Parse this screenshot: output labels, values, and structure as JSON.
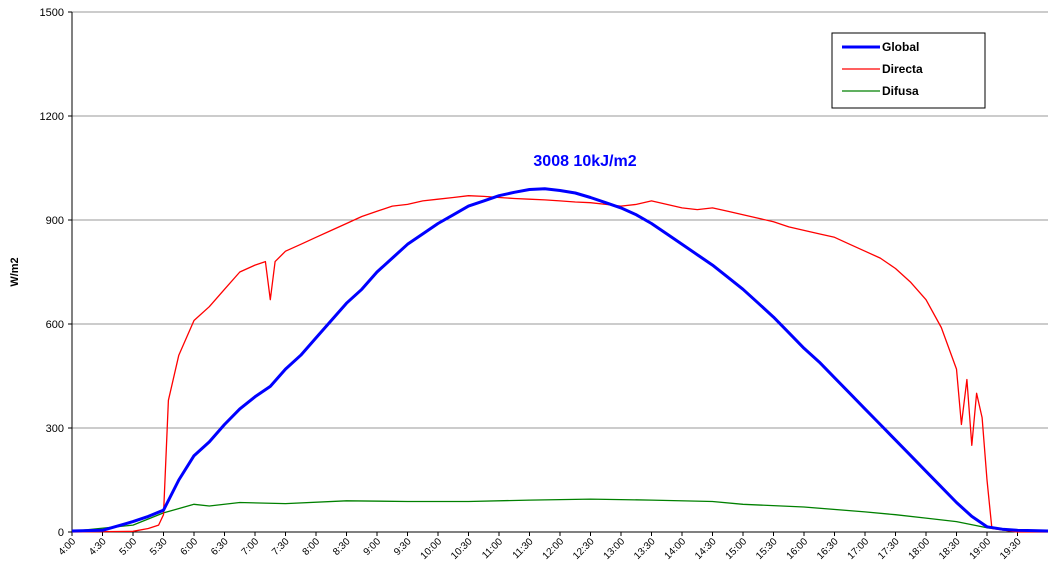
{
  "chart_data": {
    "type": "line",
    "annotation": "3008  10kJ/m2",
    "ylabel": "W/m2",
    "xlim": [
      4,
      20
    ],
    "ylim": [
      0,
      1500
    ],
    "yticks": [
      0,
      300,
      600,
      900,
      1200,
      1500
    ],
    "xticks": [
      {
        "value": 4,
        "label": "4:00"
      },
      {
        "value": 4.5,
        "label": "4:30"
      },
      {
        "value": 5,
        "label": "5:00"
      },
      {
        "value": 5.5,
        "label": "5:30"
      },
      {
        "value": 6,
        "label": "6:00"
      },
      {
        "value": 6.5,
        "label": "6:30"
      },
      {
        "value": 7,
        "label": "7:00"
      },
      {
        "value": 7.5,
        "label": "7:30"
      },
      {
        "value": 8,
        "label": "8:00"
      },
      {
        "value": 8.5,
        "label": "8:30"
      },
      {
        "value": 9,
        "label": "9:00"
      },
      {
        "value": 9.5,
        "label": "9:30"
      },
      {
        "value": 10,
        "label": "10:00"
      },
      {
        "value": 10.5,
        "label": "10:30"
      },
      {
        "value": 11,
        "label": "11:00"
      },
      {
        "value": 11.5,
        "label": "11:30"
      },
      {
        "value": 12,
        "label": "12:00"
      },
      {
        "value": 12.5,
        "label": "12:30"
      },
      {
        "value": 13,
        "label": "13:00"
      },
      {
        "value": 13.5,
        "label": "13:30"
      },
      {
        "value": 14,
        "label": "14:00"
      },
      {
        "value": 14.5,
        "label": "14:30"
      },
      {
        "value": 15,
        "label": "15:00"
      },
      {
        "value": 15.5,
        "label": "15:30"
      },
      {
        "value": 16,
        "label": "16:00"
      },
      {
        "value": 16.5,
        "label": "16:30"
      },
      {
        "value": 17,
        "label": "17:00"
      },
      {
        "value": 17.5,
        "label": "17:30"
      },
      {
        "value": 18,
        "label": "18:00"
      },
      {
        "value": 18.5,
        "label": "18:30"
      },
      {
        "value": 19,
        "label": "19:00"
      },
      {
        "value": 19.5,
        "label": "19:30"
      }
    ],
    "grid": true,
    "legend": "top-right",
    "series": [
      {
        "name": "Global",
        "color": "#0000ff",
        "x": [
          4,
          4.5,
          5,
          5.25,
          5.5,
          5.75,
          6,
          6.25,
          6.5,
          6.75,
          7,
          7.25,
          7.5,
          7.75,
          8,
          8.25,
          8.5,
          8.75,
          9,
          9.25,
          9.5,
          9.75,
          10,
          10.25,
          10.5,
          10.75,
          11,
          11.25,
          11.5,
          11.75,
          12,
          12.25,
          12.5,
          12.75,
          13,
          13.25,
          13.5,
          13.75,
          14,
          14.25,
          14.5,
          14.75,
          15,
          15.25,
          15.5,
          15.75,
          16,
          16.25,
          16.5,
          16.75,
          17,
          17.25,
          17.5,
          17.75,
          18,
          18.25,
          18.5,
          18.75,
          19,
          19.25,
          19.5,
          20
        ],
        "values": [
          3,
          5,
          30,
          45,
          63,
          150,
          220,
          260,
          310,
          355,
          390,
          420,
          470,
          510,
          560,
          610,
          660,
          700,
          750,
          790,
          830,
          860,
          890,
          915,
          940,
          955,
          970,
          980,
          988,
          990,
          985,
          978,
          965,
          950,
          935,
          915,
          890,
          860,
          830,
          800,
          770,
          735,
          700,
          660,
          620,
          575,
          530,
          490,
          445,
          400,
          355,
          310,
          265,
          220,
          175,
          130,
          85,
          45,
          15,
          8,
          5,
          3
        ]
      },
      {
        "name": "Directa",
        "color": "#ff0000",
        "x": [
          4,
          5,
          5.25,
          5.42,
          5.5,
          5.58,
          5.75,
          6,
          6.25,
          6.5,
          6.75,
          7,
          7.17,
          7.25,
          7.33,
          7.5,
          7.75,
          8,
          8.25,
          8.5,
          8.75,
          9,
          9.25,
          9.5,
          9.75,
          10,
          10.25,
          10.5,
          10.75,
          11,
          11.25,
          11.5,
          11.75,
          12,
          12.25,
          12.5,
          12.75,
          13,
          13.25,
          13.5,
          13.75,
          14,
          14.25,
          14.5,
          14.75,
          15,
          15.25,
          15.5,
          15.75,
          16,
          16.25,
          16.5,
          16.75,
          17,
          17.25,
          17.5,
          17.75,
          18,
          18.25,
          18.5,
          18.58,
          18.67,
          18.75,
          18.83,
          18.92,
          19,
          19.08,
          19.5,
          20
        ],
        "values": [
          0,
          2,
          10,
          20,
          50,
          380,
          510,
          610,
          650,
          700,
          750,
          770,
          780,
          670,
          780,
          810,
          830,
          850,
          870,
          890,
          910,
          925,
          940,
          945,
          955,
          960,
          965,
          970,
          968,
          965,
          962,
          960,
          958,
          955,
          952,
          950,
          945,
          940,
          945,
          955,
          945,
          935,
          930,
          935,
          925,
          915,
          905,
          895,
          880,
          870,
          860,
          850,
          830,
          810,
          790,
          760,
          720,
          670,
          590,
          470,
          310,
          440,
          250,
          400,
          330,
          150,
          10,
          0,
          0
        ]
      },
      {
        "name": "Difusa",
        "color": "#008000",
        "x": [
          4,
          5,
          5.5,
          6,
          6.25,
          6.75,
          7.5,
          8.5,
          9.5,
          10.5,
          11.5,
          12.5,
          13.5,
          14.5,
          15,
          16,
          17,
          17.5,
          18,
          18.5,
          19,
          19.5,
          20
        ],
        "values": [
          2,
          20,
          55,
          80,
          75,
          85,
          82,
          90,
          88,
          88,
          92,
          95,
          92,
          88,
          80,
          72,
          58,
          50,
          40,
          30,
          12,
          5,
          3
        ]
      }
    ]
  }
}
